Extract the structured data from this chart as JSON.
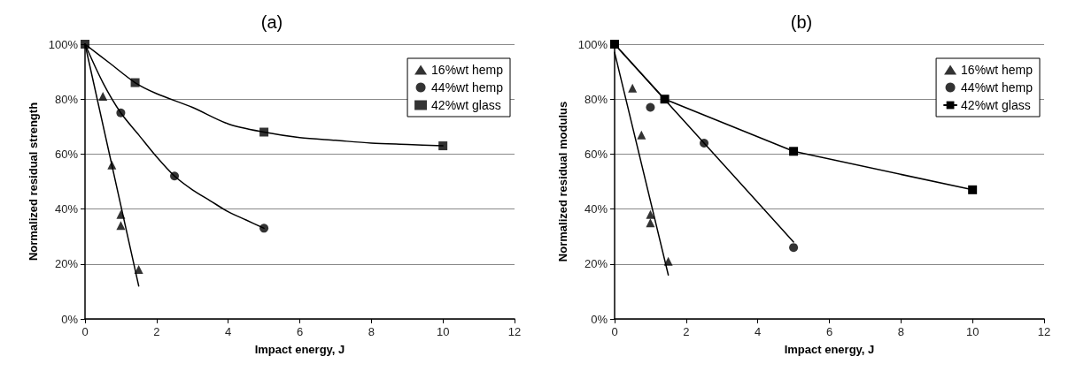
{
  "chart_data": [
    {
      "type": "scatter",
      "title": "(a)",
      "xlabel": "Impact energy, J",
      "ylabel": "Normalized residual strength",
      "xlim": [
        0,
        12
      ],
      "xticks": [
        0,
        2,
        4,
        6,
        8,
        10,
        12
      ],
      "ylim": [
        0,
        100
      ],
      "yticks": [
        {
          "value": 0,
          "label": "0%"
        },
        {
          "value": 20,
          "label": "20%"
        },
        {
          "value": 40,
          "label": "40%"
        },
        {
          "value": 60,
          "label": "60%"
        },
        {
          "value": 80,
          "label": "80%"
        },
        {
          "value": 100,
          "label": "100%"
        }
      ],
      "grid": "y",
      "legend": "top right",
      "series": [
        {
          "name": "16%wt hemp",
          "marker": "triangle",
          "color": "#000000",
          "x": [
            0.5,
            0.75,
            1,
            1,
            1.5
          ],
          "values": [
            81,
            56,
            38,
            34,
            18
          ]
        },
        {
          "name": "44%wt hemp",
          "marker": "circle",
          "color": "#000000",
          "x": [
            1,
            2.5,
            5
          ],
          "values": [
            75,
            52,
            33
          ]
        },
        {
          "name": "42%wt glass",
          "marker": "square",
          "color": "#000000",
          "x": [
            0,
            1.4,
            5,
            10
          ],
          "values": [
            100,
            86,
            68,
            63
          ]
        },
        {
          "type": "line",
          "marker": "none",
          "color": "#000000",
          "x": [
            0,
            1.5
          ],
          "values": [
            100,
            12
          ]
        },
        {
          "type": "line",
          "marker": "none",
          "color": "#000000",
          "x": [
            0,
            0.5,
            1,
            1.5,
            2,
            2.5,
            3,
            3.5,
            4,
            4.5,
            5
          ],
          "values": [
            100,
            86,
            75,
            67,
            59,
            52,
            47,
            43,
            39,
            36,
            33
          ]
        },
        {
          "type": "line",
          "marker": "none",
          "color": "#000000",
          "x": [
            0,
            0.7,
            1.4,
            2,
            3,
            4,
            5,
            6,
            7,
            8,
            9,
            10
          ],
          "values": [
            100,
            93,
            86,
            82,
            77,
            71,
            68,
            66,
            65,
            64,
            63.5,
            63
          ]
        }
      ]
    },
    {
      "type": "scatter",
      "title": "(b)",
      "xlabel": "Impact energy, J",
      "ylabel": "Normalized residual modulus",
      "xlim": [
        0,
        12
      ],
      "xticks": [
        0,
        2,
        4,
        6,
        8,
        10,
        12
      ],
      "ylim": [
        0,
        100
      ],
      "yticks": [
        {
          "value": 0,
          "label": "0%"
        },
        {
          "value": 20,
          "label": "20%"
        },
        {
          "value": 40,
          "label": "40%"
        },
        {
          "value": 60,
          "label": "60%"
        },
        {
          "value": 80,
          "label": "80%"
        },
        {
          "value": 100,
          "label": "100%"
        }
      ],
      "grid": "y",
      "legend": "top right",
      "series": [
        {
          "name": "16%wt hemp",
          "marker": "triangle",
          "color": "#000000",
          "x": [
            0.5,
            0.75,
            1,
            1,
            1.5
          ],
          "values": [
            84,
            67,
            38,
            35,
            21
          ]
        },
        {
          "name": "44%wt hemp",
          "marker": "circle",
          "color": "#000000",
          "x": [
            1,
            2.5,
            5
          ],
          "values": [
            77,
            64,
            26
          ]
        },
        {
          "name": "42%wt glass",
          "type": "line",
          "marker": "square",
          "color": "#000000",
          "x": [
            0,
            1.4,
            5,
            10
          ],
          "values": [
            100,
            80,
            61,
            47
          ]
        },
        {
          "type": "line",
          "marker": "none",
          "color": "#000000",
          "x": [
            0,
            1.5
          ],
          "values": [
            97,
            16
          ]
        },
        {
          "type": "line",
          "marker": "none",
          "color": "#000000",
          "x": [
            0,
            5
          ],
          "values": [
            100,
            28
          ]
        }
      ]
    }
  ]
}
